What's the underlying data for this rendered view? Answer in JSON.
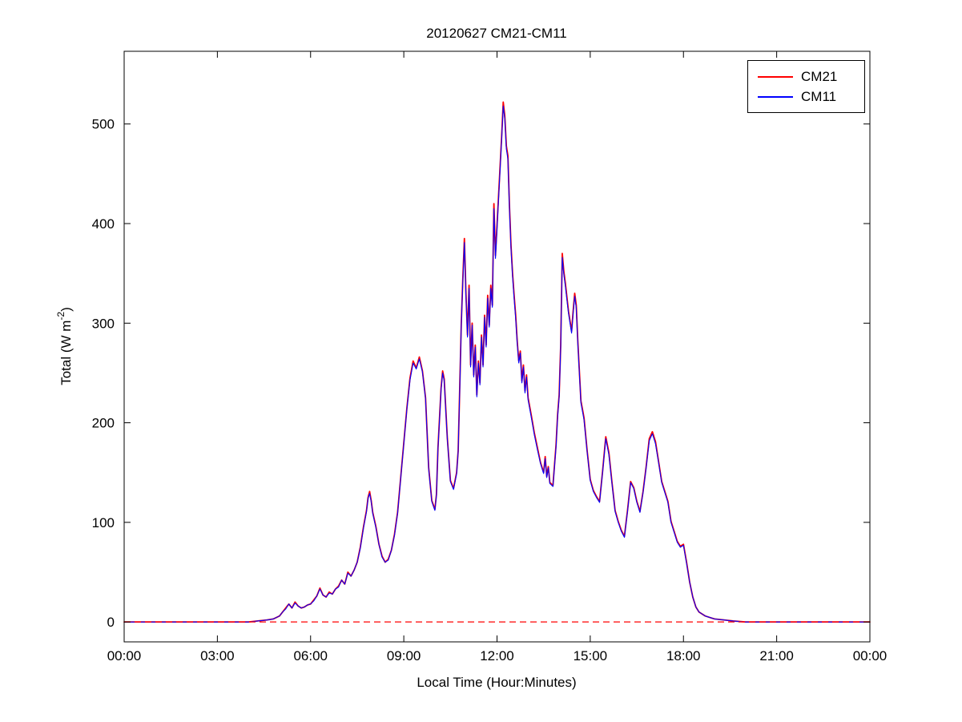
{
  "figure": {
    "background": "#ffffff"
  },
  "chart_data": {
    "type": "line",
    "title": "20120627 CM21-CM11",
    "xlabel": "Local Time (Hour:Minutes)",
    "ylabel": "Total (W m-2)",
    "ylabel_parts": {
      "base": "Total (W m",
      "sup": "-2",
      "close": ")"
    },
    "xlim": [
      0,
      24
    ],
    "ylim": [
      -20,
      573
    ],
    "x_ticks": [
      0,
      3,
      6,
      9,
      12,
      15,
      18,
      21,
      24
    ],
    "x_tick_labels": [
      "00:00",
      "03:00",
      "06:00",
      "09:00",
      "12:00",
      "15:00",
      "18:00",
      "21:00",
      "00:00"
    ],
    "y_ticks": [
      0,
      100,
      200,
      300,
      400,
      500
    ],
    "y_tick_labels": [
      "0",
      "100",
      "200",
      "300",
      "400",
      "500"
    ],
    "grid": false,
    "legend_position": "top-right",
    "zero_line": {
      "value": 0,
      "color": "#ff0000",
      "style": "dashed"
    },
    "x": [
      0,
      0.5,
      1,
      1.5,
      2,
      2.5,
      3,
      3.5,
      4,
      4.3,
      4.6,
      4.8,
      5,
      5.1,
      5.2,
      5.3,
      5.4,
      5.5,
      5.6,
      5.7,
      5.8,
      5.9,
      6,
      6.1,
      6.2,
      6.3,
      6.4,
      6.5,
      6.6,
      6.7,
      6.8,
      6.9,
      7,
      7.1,
      7.2,
      7.3,
      7.4,
      7.5,
      7.6,
      7.7,
      7.8,
      7.85,
      7.9,
      7.95,
      8,
      8.1,
      8.2,
      8.3,
      8.4,
      8.5,
      8.6,
      8.7,
      8.8,
      8.9,
      9,
      9.1,
      9.2,
      9.3,
      9.4,
      9.5,
      9.6,
      9.7,
      9.8,
      9.9,
      10,
      10.05,
      10.1,
      10.2,
      10.25,
      10.3,
      10.4,
      10.5,
      10.6,
      10.7,
      10.75,
      10.8,
      10.85,
      10.9,
      10.95,
      11,
      11.05,
      11.1,
      11.15,
      11.2,
      11.25,
      11.3,
      11.35,
      11.4,
      11.45,
      11.5,
      11.55,
      11.6,
      11.65,
      11.7,
      11.75,
      11.8,
      11.85,
      11.9,
      11.95,
      12,
      12.05,
      12.1,
      12.15,
      12.2,
      12.25,
      12.3,
      12.35,
      12.4,
      12.45,
      12.5,
      12.55,
      12.6,
      12.65,
      12.7,
      12.75,
      12.8,
      12.85,
      12.9,
      12.95,
      13,
      13.1,
      13.2,
      13.3,
      13.4,
      13.5,
      13.55,
      13.6,
      13.65,
      13.7,
      13.8,
      13.9,
      13.95,
      14,
      14.05,
      14.1,
      14.15,
      14.2,
      14.3,
      14.4,
      14.45,
      14.5,
      14.55,
      14.6,
      14.7,
      14.8,
      14.9,
      15,
      15.1,
      15.2,
      15.3,
      15.4,
      15.5,
      15.6,
      15.7,
      15.8,
      15.9,
      16,
      16.1,
      16.2,
      16.3,
      16.4,
      16.5,
      16.6,
      16.7,
      16.8,
      16.9,
      17,
      17.1,
      17.2,
      17.3,
      17.4,
      17.5,
      17.6,
      17.7,
      17.8,
      17.9,
      18,
      18.1,
      18.2,
      18.3,
      18.4,
      18.5,
      18.7,
      19,
      19.3,
      19.6,
      20,
      21,
      22,
      23,
      24
    ],
    "series": [
      {
        "name": "CM21",
        "color": "#ff0000",
        "values": [
          0,
          0,
          0,
          0,
          0,
          0,
          0,
          0,
          0,
          1,
          2,
          3,
          6,
          10,
          14,
          18,
          14,
          20,
          16,
          14,
          15,
          17,
          18,
          22,
          26,
          34,
          27,
          25,
          30,
          28,
          33,
          36,
          42,
          38,
          50,
          46,
          52,
          60,
          75,
          95,
          112,
          125,
          131,
          122,
          110,
          96,
          78,
          66,
          60,
          63,
          72,
          88,
          110,
          145,
          180,
          215,
          245,
          262,
          255,
          266,
          252,
          225,
          155,
          122,
          113,
          128,
          175,
          235,
          252,
          244,
          185,
          142,
          134,
          150,
          172,
          235,
          300,
          345,
          385,
          330,
          288,
          338,
          258,
          300,
          248,
          278,
          228,
          262,
          240,
          288,
          258,
          308,
          278,
          328,
          298,
          338,
          318,
          420,
          368,
          398,
          428,
          458,
          488,
          522,
          508,
          478,
          468,
          418,
          378,
          350,
          328,
          308,
          282,
          262,
          272,
          242,
          258,
          232,
          248,
          225,
          208,
          190,
          175,
          160,
          150,
          166,
          146,
          156,
          140,
          137,
          178,
          208,
          228,
          278,
          370,
          352,
          340,
          312,
          292,
          312,
          330,
          318,
          282,
          222,
          205,
          172,
          143,
          132,
          126,
          121,
          152,
          186,
          170,
          140,
          112,
          101,
          92,
          86,
          112,
          141,
          135,
          121,
          111,
          131,
          156,
          184,
          191,
          181,
          161,
          141,
          131,
          121,
          101,
          91,
          81,
          76,
          78,
          60,
          40,
          25,
          15,
          10,
          6,
          3,
          2,
          1,
          0,
          0,
          0,
          0,
          0
        ]
      },
      {
        "name": "CM11",
        "color": "#0000ff",
        "values": [
          0,
          0,
          0,
          0,
          0,
          0,
          0,
          0,
          0,
          1,
          2,
          3,
          6,
          10,
          13,
          18,
          14,
          19,
          16,
          14,
          15,
          17,
          18,
          21,
          26,
          33,
          27,
          25,
          29,
          28,
          33,
          35,
          42,
          38,
          49,
          46,
          52,
          60,
          74,
          94,
          111,
          124,
          129,
          121,
          109,
          95,
          78,
          65,
          60,
          62,
          72,
          87,
          109,
          144,
          179,
          214,
          243,
          260,
          254,
          264,
          251,
          224,
          154,
          121,
          112,
          127,
          174,
          233,
          250,
          242,
          184,
          141,
          133,
          149,
          171,
          233,
          298,
          342,
          381,
          327,
          286,
          335,
          256,
          298,
          246,
          276,
          226,
          260,
          238,
          286,
          256,
          306,
          276,
          325,
          296,
          335,
          316,
          415,
          365,
          395,
          425,
          455,
          485,
          518,
          505,
          475,
          465,
          415,
          375,
          347,
          325,
          305,
          280,
          260,
          270,
          240,
          256,
          230,
          246,
          223,
          206,
          188,
          173,
          159,
          149,
          164,
          145,
          155,
          139,
          136,
          176,
          206,
          226,
          276,
          366,
          349,
          337,
          310,
          290,
          310,
          327,
          315,
          280,
          220,
          203,
          171,
          142,
          131,
          125,
          120,
          151,
          184,
          168,
          139,
          111,
          100,
          91,
          85,
          111,
          140,
          134,
          120,
          110,
          130,
          155,
          182,
          189,
          179,
          160,
          140,
          130,
          120,
          100,
          90,
          80,
          75,
          77,
          59,
          40,
          25,
          15,
          10,
          6,
          3,
          2,
          1,
          0,
          0,
          0,
          0,
          0
        ]
      }
    ]
  }
}
